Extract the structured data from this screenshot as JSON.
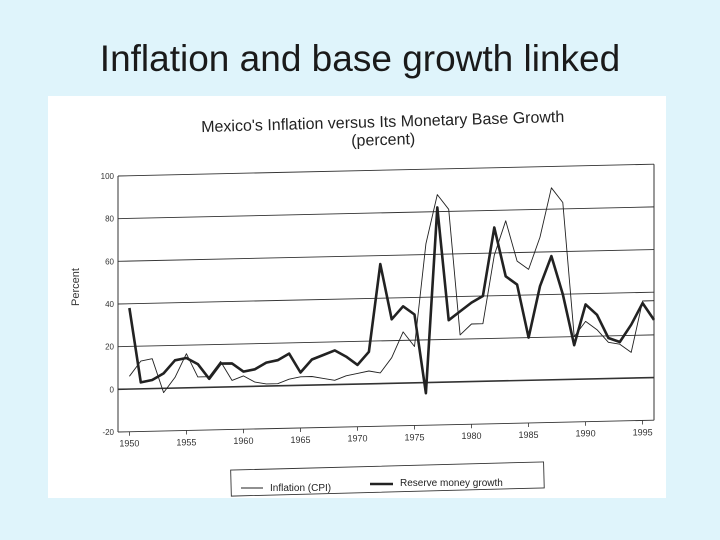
{
  "slide": {
    "title": "Inflation and base growth linked"
  },
  "chart_data": {
    "type": "line",
    "title": "Mexico's Inflation versus Its Monetary Base Growth",
    "subtitle": "(percent)",
    "ylabel": "Percent",
    "xlabel": "",
    "ylim": [
      -20,
      100
    ],
    "xlim": [
      1949,
      1996
    ],
    "yticks": [
      "100",
      "80",
      "60",
      "40",
      "20",
      "0",
      "-20"
    ],
    "xticks": [
      "1950",
      "1955",
      "1960",
      "1965",
      "1970",
      "1975",
      "1980",
      "1985",
      "1990",
      "1995"
    ],
    "grid": true,
    "legend_position": "bottom",
    "x": [
      1950,
      1951,
      1952,
      1953,
      1954,
      1955,
      1956,
      1957,
      1958,
      1959,
      1960,
      1961,
      1962,
      1963,
      1964,
      1965,
      1966,
      1967,
      1968,
      1969,
      1970,
      1971,
      1972,
      1973,
      1974,
      1975,
      1976,
      1977,
      1978,
      1979,
      1980,
      1981,
      1982,
      1983,
      1984,
      1985,
      1986,
      1987,
      1988,
      1989,
      1990,
      1991,
      1992,
      1993,
      1994,
      1995,
      1996
    ],
    "series": [
      {
        "name": "Inflation (CPI)",
        "style": "thin",
        "values": [
          6,
          13,
          14,
          -2,
          5,
          16,
          5,
          5,
          12,
          3,
          5,
          2,
          1,
          1,
          3,
          4,
          4,
          3,
          2,
          4,
          5,
          6,
          5,
          12,
          24,
          17,
          65,
          88,
          81,
          22,
          27,
          27,
          59,
          75,
          56,
          52,
          67,
          90,
          83,
          20,
          27,
          23,
          17,
          16,
          12,
          36,
          36
        ]
      },
      {
        "name": "Reserve money growth",
        "style": "thick",
        "values": [
          38,
          3,
          4,
          7,
          13,
          14,
          11,
          4,
          11,
          11,
          7,
          8,
          11,
          12,
          15,
          6,
          12,
          14,
          16,
          13,
          9,
          15,
          56,
          30,
          36,
          32,
          -5,
          82,
          29,
          33,
          37,
          40,
          72,
          49,
          45,
          20,
          44,
          58,
          40,
          16,
          35,
          30,
          19,
          17,
          25,
          35,
          27
        ]
      }
    ],
    "colors": {
      "line": "#222222",
      "grid": "#333333",
      "background": "#ffffff",
      "page": "#dff4fb"
    }
  }
}
